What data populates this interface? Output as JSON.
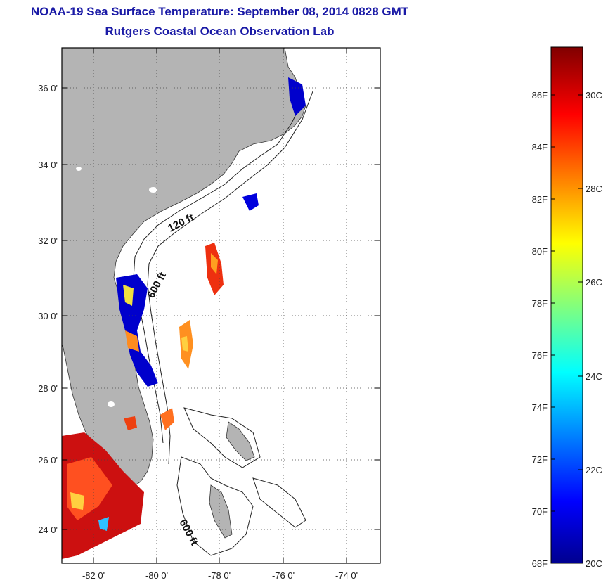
{
  "header": {
    "title": "NOAA-19 Sea Surface Temperature:  September 08, 2014 0828 GMT",
    "subtitle": "Rutgers Coastal Ocean Observation Lab"
  },
  "map": {
    "lat_ticks": [
      "36 0'",
      "34 0'",
      "32 0'",
      "30 0'",
      "28 0'",
      "26 0'",
      "24 0'"
    ],
    "lon_ticks": [
      "-82 0'",
      "-80 0'",
      "-78 0'",
      "-76 0'",
      "-74 0'"
    ],
    "contour_labels": [
      "120 ft",
      "600 ft",
      "600 ft"
    ],
    "land_color": "#b4b4b4",
    "grid": true
  },
  "colorbar": {
    "min_c": 20,
    "max_c": 31.1,
    "fahrenheit_ticks": [
      "86F",
      "84F",
      "82F",
      "80F",
      "78F",
      "76F",
      "74F",
      "72F",
      "70F",
      "68F"
    ],
    "celsius_ticks": [
      "30C",
      "28C",
      "26C",
      "24C",
      "22C",
      "20C"
    ],
    "colormap": "jet"
  }
}
